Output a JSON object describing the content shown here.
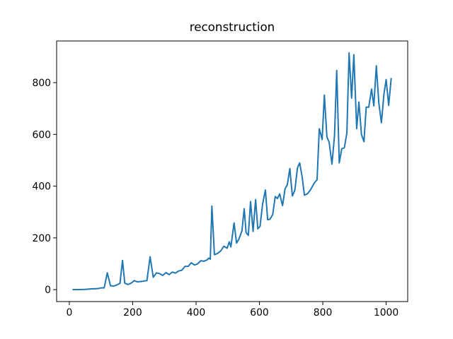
{
  "chart_data": {
    "type": "line",
    "title": "reconstruction",
    "x": [
      10,
      30,
      50,
      70,
      90,
      100,
      110,
      120,
      130,
      140,
      150,
      160,
      168,
      175,
      185,
      195,
      205,
      215,
      230,
      245,
      255,
      265,
      275,
      285,
      295,
      305,
      315,
      325,
      335,
      345,
      355,
      365,
      375,
      385,
      395,
      405,
      415,
      425,
      435,
      440,
      445,
      450,
      458,
      468,
      478,
      488,
      498,
      505,
      510,
      520,
      528,
      535,
      545,
      552,
      558,
      565,
      572,
      580,
      588,
      595,
      602,
      610,
      619,
      626,
      633,
      642,
      650,
      657,
      664,
      673,
      681,
      688,
      696,
      704,
      712,
      720,
      727,
      735,
      742,
      751,
      761,
      772,
      782,
      789,
      798,
      805,
      813,
      820,
      829,
      837,
      844,
      852,
      860,
      868,
      876,
      883,
      891,
      898,
      907,
      914,
      922,
      930,
      937,
      945,
      954,
      961,
      969,
      977,
      985,
      993,
      1000,
      1008,
      1016
    ],
    "series": [
      {
        "name": "reconstruction",
        "color": "#1f77b4",
        "values": [
          0,
          0.5,
          1,
          3,
          4,
          7,
          7,
          65,
          15,
          14,
          18,
          25,
          113,
          25,
          20,
          25,
          35,
          30,
          32,
          35,
          127,
          48,
          65,
          62,
          55,
          66,
          58,
          68,
          64,
          72,
          75,
          90,
          90,
          104,
          95,
          100,
          112,
          110,
          115,
          122,
          118,
          323,
          135,
          140,
          150,
          168,
          160,
          185,
          165,
          258,
          180,
          195,
          228,
          313,
          220,
          210,
          340,
          225,
          348,
          235,
          245,
          330,
          385,
          270,
          272,
          290,
          360,
          352,
          370,
          325,
          390,
          405,
          468,
          362,
          385,
          470,
          490,
          435,
          365,
          370,
          385,
          410,
          425,
          622,
          580,
          752,
          590,
          570,
          485,
          595,
          847,
          490,
          545,
          548,
          605,
          915,
          740,
          908,
          622,
          725,
          600,
          572,
          705,
          705,
          775,
          710,
          865,
          720,
          645,
          755,
          812,
          712,
          818
        ]
      }
    ],
    "xlim": [
      -40,
      1068
    ],
    "ylim": [
      -46,
      961
    ],
    "xticks": [
      0,
      200,
      400,
      600,
      800,
      1000
    ],
    "yticks": [
      0,
      200,
      400,
      600,
      800
    ]
  }
}
